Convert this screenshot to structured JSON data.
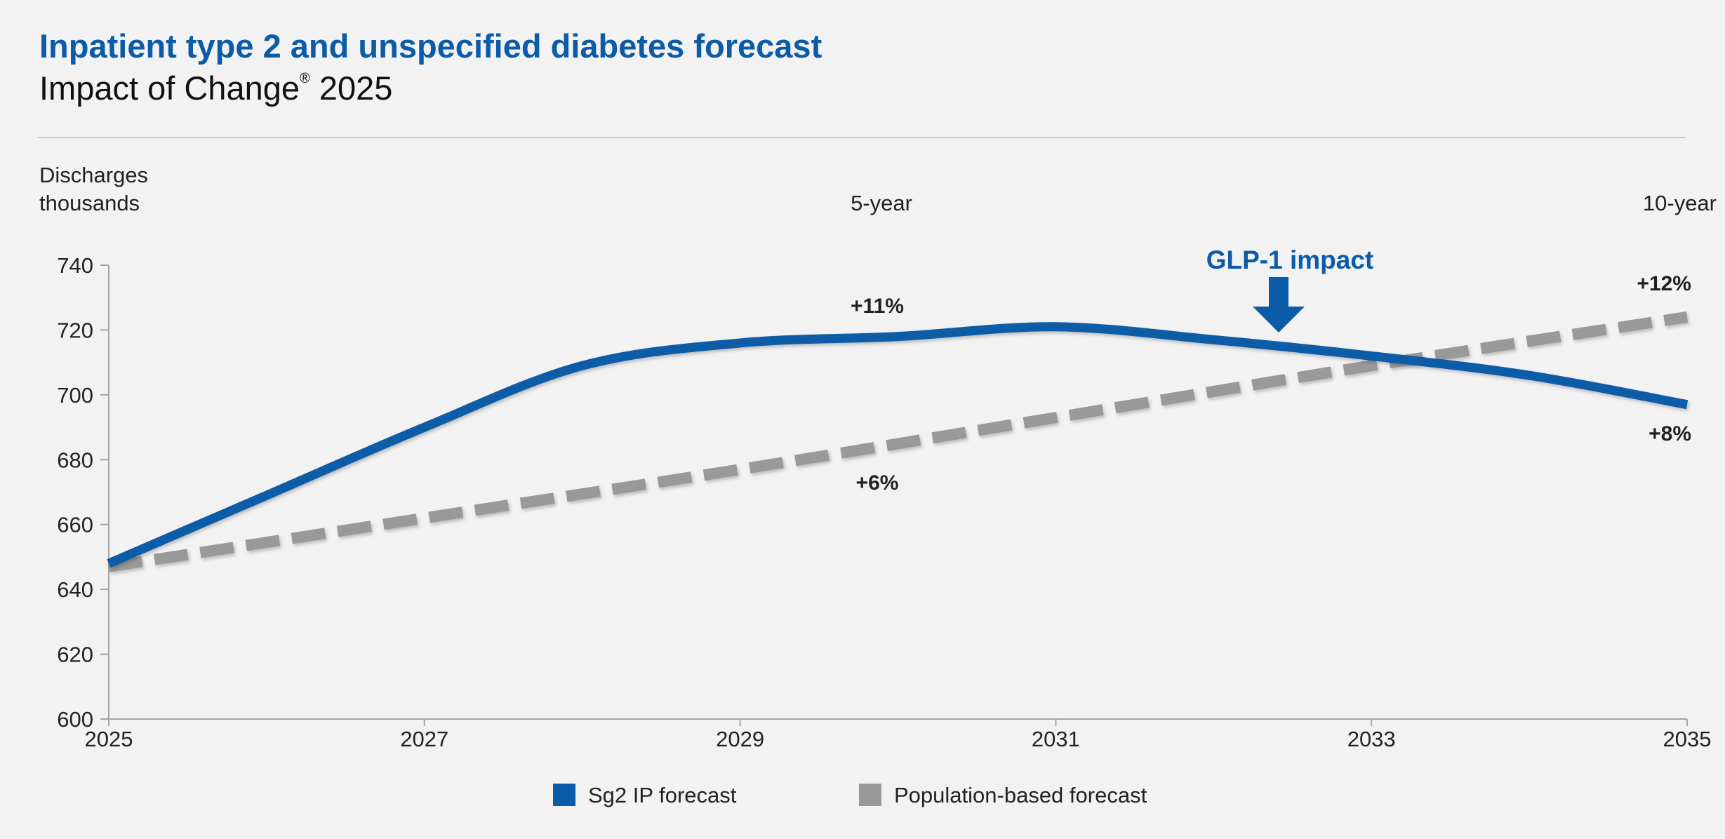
{
  "header": {
    "title": "Inpatient type 2 and unspecified diabetes forecast",
    "subtitle_main": "Impact of Change",
    "subtitle_mark": "®",
    "subtitle_year": "2025"
  },
  "colors": {
    "series_primary": "#0b5ba8",
    "series_secondary": "#999999",
    "axis": "#a6a6a6",
    "text": "#222222"
  },
  "chart_data": {
    "type": "line",
    "title": "Inpatient type 2 and unspecified diabetes forecast",
    "ylabel_line1": "Discharges",
    "ylabel_line2": "thousands",
    "xlabel": "",
    "xlim": [
      2025,
      2035
    ],
    "ylim": [
      600,
      740
    ],
    "x_ticks": [
      2025,
      2027,
      2029,
      2031,
      2033,
      2035
    ],
    "x_tick_labels": [
      "2025",
      "2027",
      "2029",
      "2031",
      "2033",
      "2035"
    ],
    "y_ticks": [
      600,
      620,
      640,
      660,
      680,
      700,
      720,
      740
    ],
    "y_tick_labels": [
      "600",
      "620",
      "640",
      "660",
      "680",
      "700",
      "720",
      "740"
    ],
    "series": [
      {
        "name": "Sg2 IP forecast",
        "style": "solid",
        "color": "#0b5ba8",
        "x": [
          2025,
          2026,
          2027,
          2028,
          2029,
          2030,
          2031,
          2032,
          2033,
          2034,
          2035
        ],
        "values": [
          648,
          669,
          690,
          709,
          716,
          718,
          721,
          717,
          712,
          706,
          697
        ]
      },
      {
        "name": "Population-based forecast",
        "style": "dashed",
        "color": "#999999",
        "x": [
          2025,
          2027,
          2029,
          2031,
          2033,
          2035
        ],
        "values": [
          647,
          662,
          677,
          693,
          709,
          724
        ]
      }
    ],
    "annotations": {
      "five_year": "5-year",
      "ten_year": "10-year",
      "sg2_5yr": "+11%",
      "pop_5yr": "+6%",
      "pop_10yr": "+12%",
      "sg2_10yr": "+8%",
      "glp1": "GLP-1 impact"
    },
    "legend": {
      "position": "bottom-center",
      "items": [
        "Sg2 IP forecast",
        "Population-based forecast"
      ]
    }
  }
}
